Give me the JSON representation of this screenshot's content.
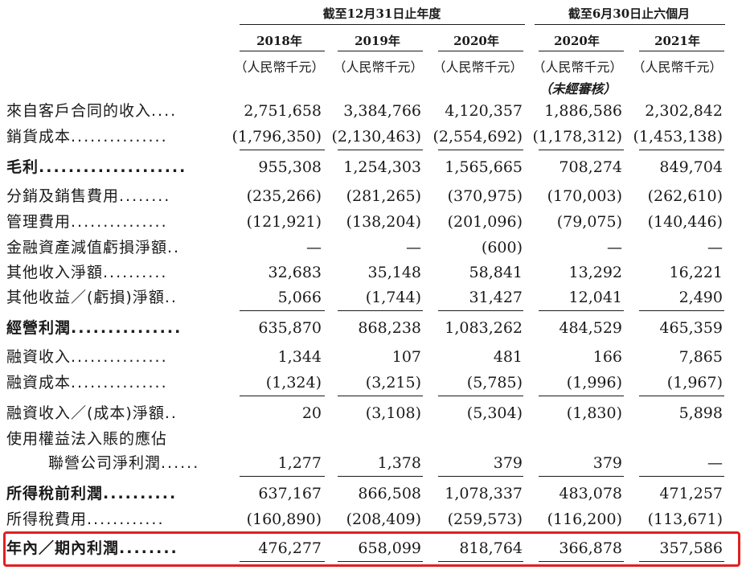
{
  "header": {
    "group_annual": "截至12月31日止年度",
    "group_interim": "截至6月30日止六個月",
    "years": [
      "2018年",
      "2019年",
      "2020年",
      "2020年",
      "2021年"
    ],
    "unit": "（人民幣千元）",
    "unaudited": "（未經審核）"
  },
  "rows": [
    {
      "label": "來自客戶合同的收入",
      "dots": "....",
      "values": [
        "2,751,658",
        "3,384,766",
        "4,120,357",
        "1,886,586",
        "2,302,842"
      ]
    },
    {
      "label": "銷貨成本",
      "dots": "...............",
      "values": [
        "(1,796,350)",
        "(2,130,463)",
        "(2,554,692)",
        "(1,178,312)",
        "(1,453,138)"
      ]
    },
    {
      "label": "毛利",
      "dots": "....................",
      "values": [
        "955,308",
        "1,254,303",
        "1,565,665",
        "708,274",
        "849,704"
      ]
    },
    {
      "label": "分銷及銷售費用",
      "dots": "........",
      "values": [
        "(235,266)",
        "(281,265)",
        "(370,975)",
        "(170,003)",
        "(262,610)"
      ]
    },
    {
      "label": "管理費用",
      "dots": "...............",
      "values": [
        "(121,921)",
        "(138,204)",
        "(201,096)",
        "(79,075)",
        "(140,446)"
      ]
    },
    {
      "label": "金融資產減值虧損淨額",
      "dots": "..",
      "values": [
        "—",
        "—",
        "(600)",
        "—",
        "—"
      ]
    },
    {
      "label": "其他收入淨額",
      "dots": "..........",
      "values": [
        "32,683",
        "35,148",
        "58,841",
        "13,292",
        "16,221"
      ]
    },
    {
      "label": "其他收益／(虧損)淨額",
      "dots": "..",
      "values": [
        "5,066",
        "(1,744)",
        "31,427",
        "12,041",
        "2,490"
      ]
    },
    {
      "label": "經營利潤",
      "dots": "...............",
      "values": [
        "635,870",
        "868,238",
        "1,083,262",
        "484,529",
        "465,359"
      ]
    },
    {
      "label": "融資收入",
      "dots": "...............",
      "values": [
        "1,344",
        "107",
        "481",
        "166",
        "7,865"
      ]
    },
    {
      "label": "融資成本",
      "dots": "...............",
      "values": [
        "(1,324)",
        "(3,215)",
        "(5,785)",
        "(1,996)",
        "(1,967)"
      ]
    },
    {
      "label": "融資收入／(成本)淨額",
      "dots": "..",
      "values": [
        "20",
        "(3,108)",
        "(5,304)",
        "(1,830)",
        "5,898"
      ]
    },
    {
      "label": "使用權益法入賬的應佔",
      "dots": "",
      "values": [
        "",
        "",
        "",
        "",
        ""
      ]
    },
    {
      "label": "聯營公司淨利潤",
      "dots": "......",
      "values": [
        "1,277",
        "1,378",
        "379",
        "379",
        "—"
      ]
    },
    {
      "label": "所得稅前利潤",
      "dots": "..........",
      "values": [
        "637,167",
        "866,508",
        "1,078,337",
        "483,078",
        "471,257"
      ]
    },
    {
      "label": "所得稅費用",
      "dots": "............",
      "values": [
        "(160,890)",
        "(208,409)",
        "(259,573)",
        "(116,200)",
        "(113,671)"
      ]
    },
    {
      "label": "年內／期內利潤",
      "dots": "........",
      "values": [
        "476,277",
        "658,099",
        "818,764",
        "366,878",
        "357,586"
      ]
    }
  ],
  "colors": {
    "highlight": "#e02020",
    "text": "#1a1a1a"
  }
}
